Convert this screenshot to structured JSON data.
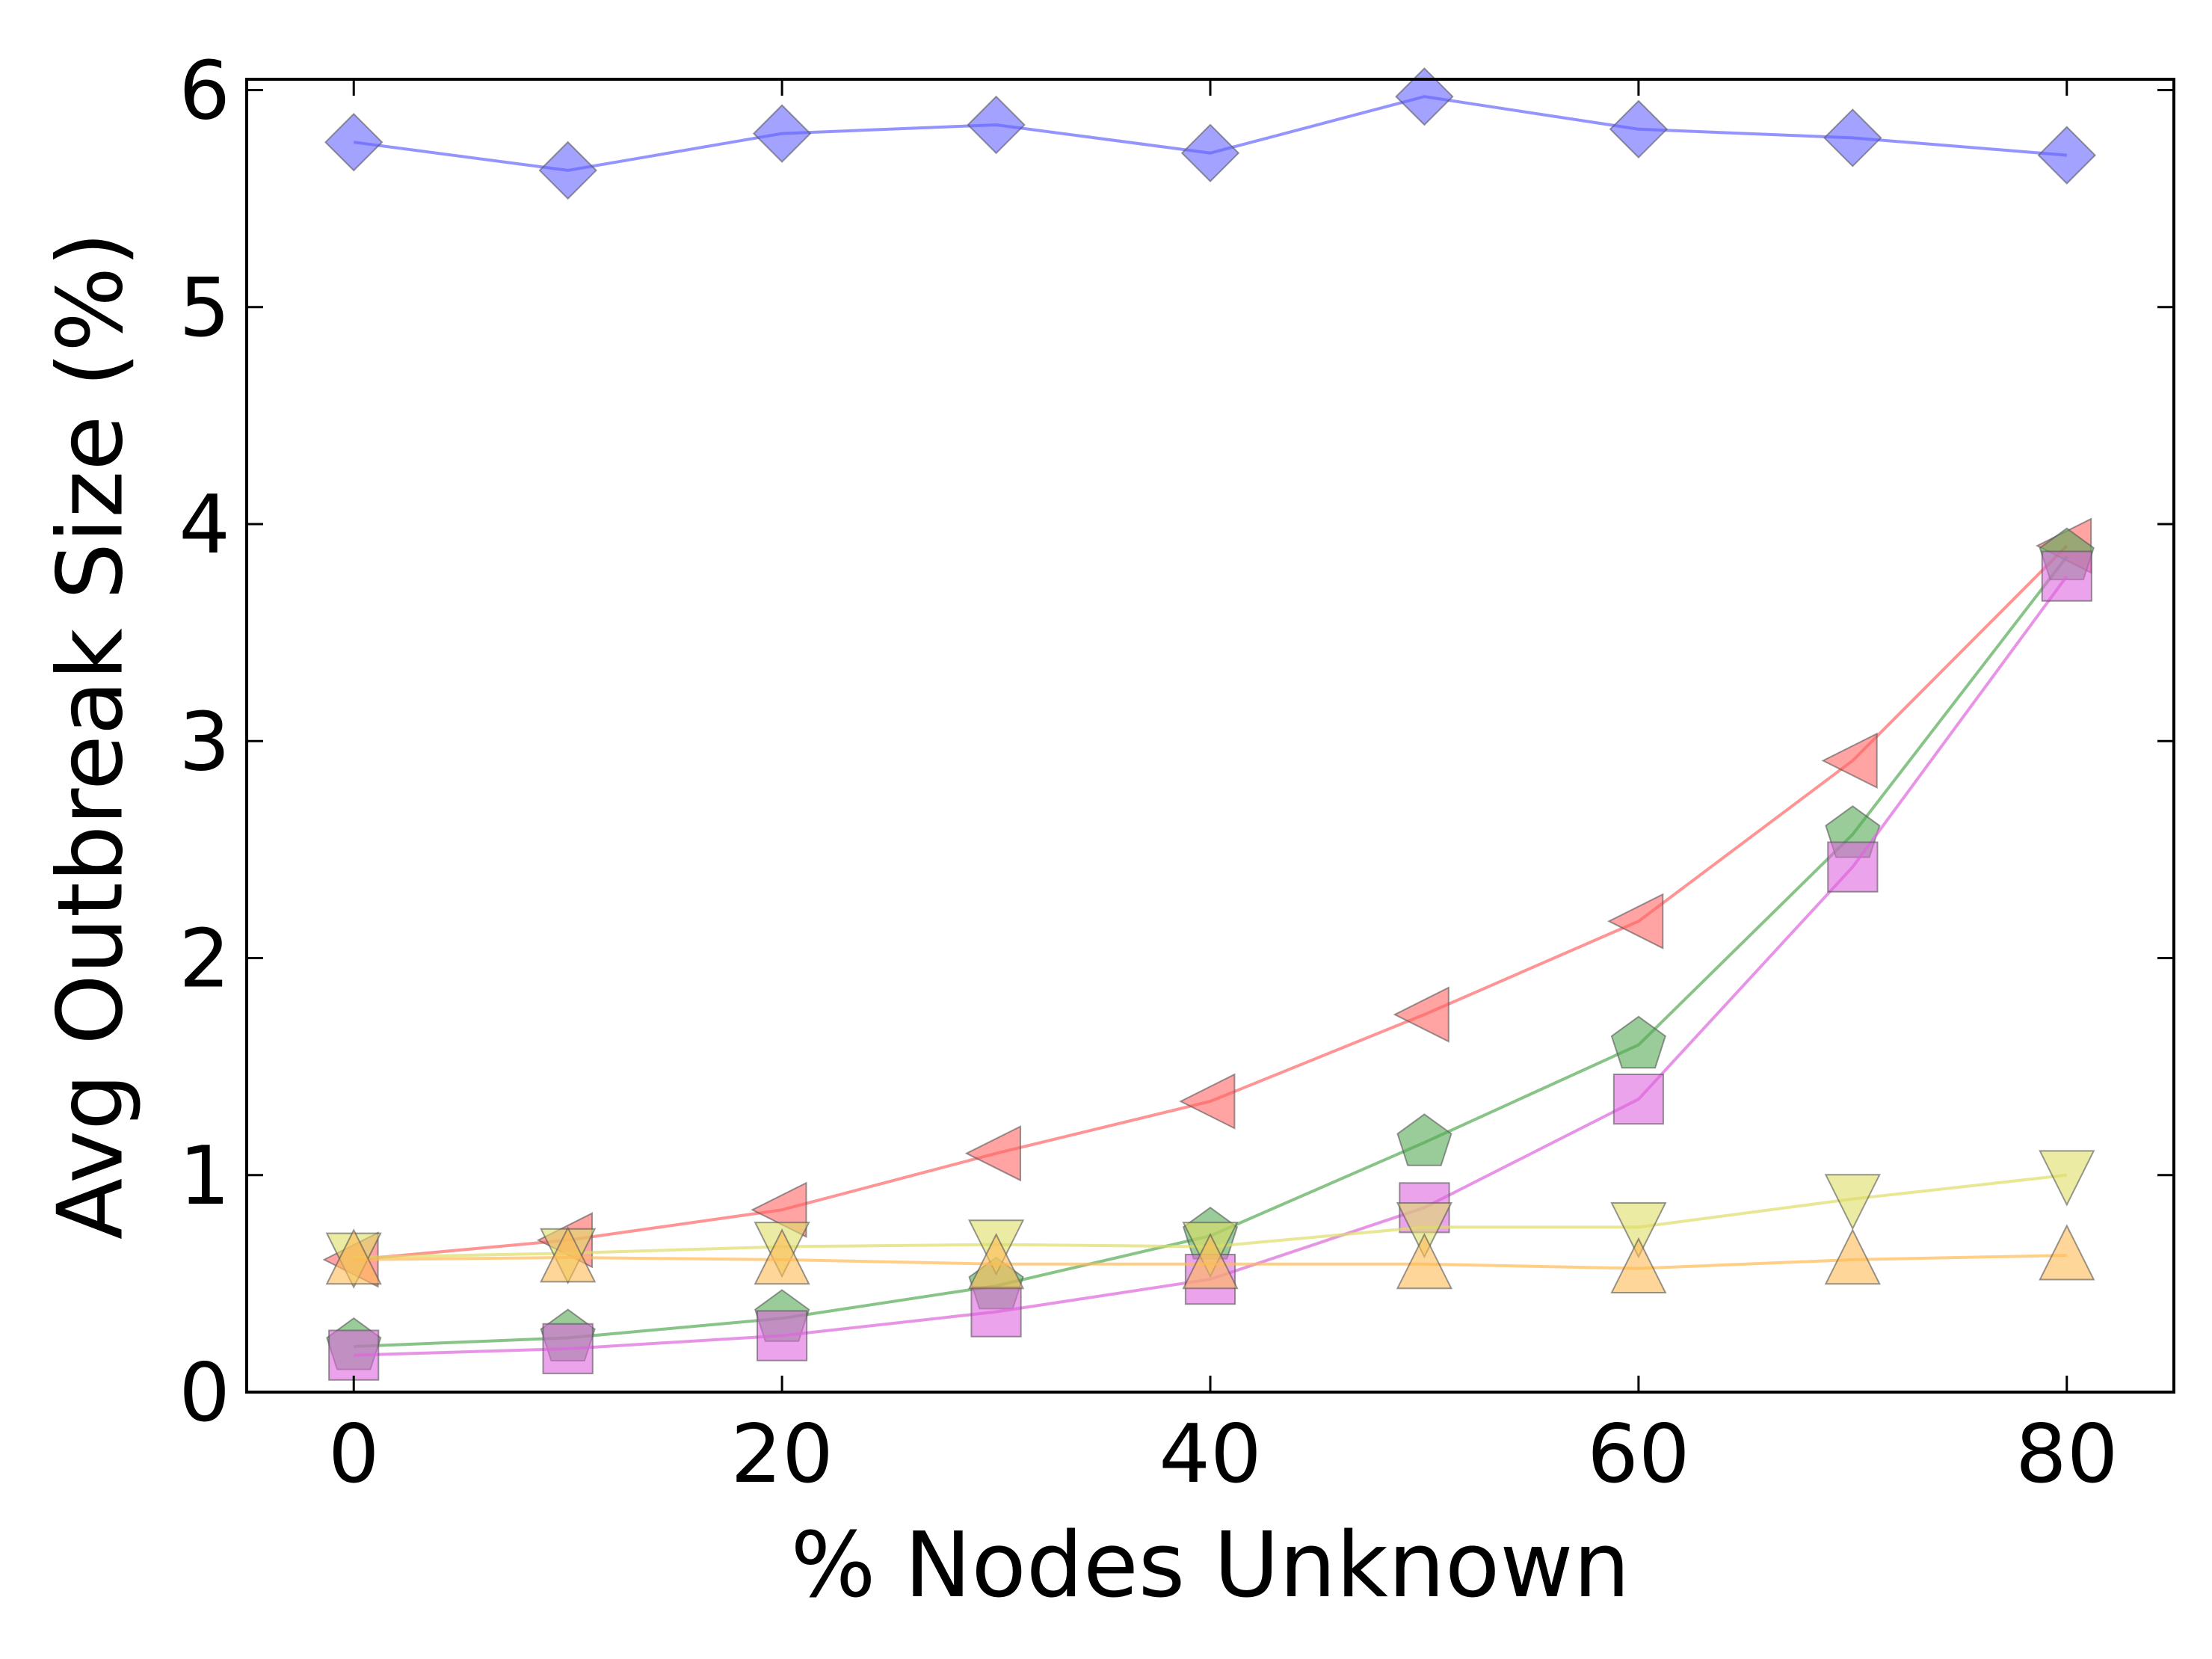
{
  "chart_data": {
    "type": "line",
    "title": "",
    "xlabel": "% Nodes Unknown",
    "ylabel": "Avg Outbreak Size (%)",
    "xlim": [
      -5,
      85
    ],
    "ylim": [
      0,
      6.05
    ],
    "xticks": [
      0,
      20,
      40,
      60,
      80
    ],
    "yticks": [
      0,
      1,
      2,
      3,
      4,
      5,
      6
    ],
    "grid": false,
    "legend": "none",
    "x": [
      0,
      10,
      20,
      30,
      40,
      50,
      60,
      70,
      80
    ],
    "series": [
      {
        "color": "#6666ff",
        "marker": "diamond",
        "values": [
          5.76,
          5.63,
          5.8,
          5.84,
          5.71,
          5.97,
          5.82,
          5.78,
          5.7
        ]
      },
      {
        "color": "#ff6666",
        "marker": "triangle-left",
        "values": [
          0.61,
          0.7,
          0.84,
          1.1,
          1.34,
          1.74,
          2.17,
          2.91,
          3.9
        ]
      },
      {
        "color": "#55aa55",
        "marker": "pentagon",
        "values": [
          0.21,
          0.25,
          0.34,
          0.49,
          0.72,
          1.15,
          1.6,
          2.57,
          3.85
        ]
      },
      {
        "color": "#dd66dd",
        "marker": "square",
        "values": [
          0.17,
          0.2,
          0.26,
          0.37,
          0.52,
          0.85,
          1.35,
          2.42,
          3.76
        ]
      },
      {
        "color": "#dddd66",
        "marker": "triangle-down",
        "values": [
          0.62,
          0.64,
          0.67,
          0.68,
          0.67,
          0.76,
          0.76,
          0.89,
          1.0
        ]
      },
      {
        "color": "#ffbb55",
        "marker": "triangle-up",
        "values": [
          0.61,
          0.62,
          0.61,
          0.59,
          0.59,
          0.59,
          0.57,
          0.61,
          0.63
        ]
      }
    ]
  }
}
